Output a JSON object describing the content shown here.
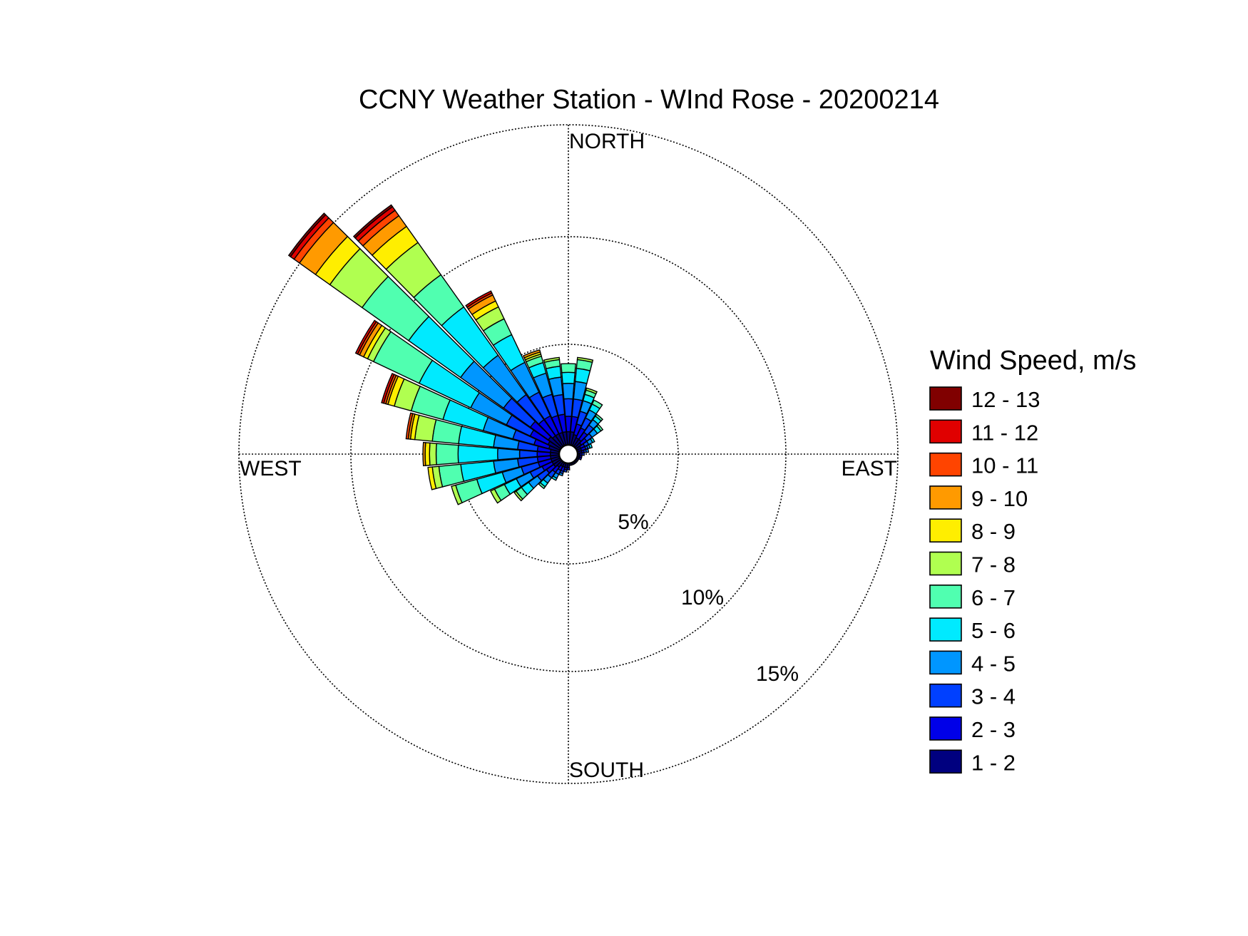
{
  "chart_data": {
    "type": "wind-rose",
    "title": "CCNY Weather Station - WInd Rose - 20200214",
    "directions": {
      "north": "NORTH",
      "east": "EAST",
      "south": "SOUTH",
      "west": "WEST"
    },
    "radial_ticks": [
      {
        "value": 5,
        "label": "5%"
      },
      {
        "value": 10,
        "label": "10%"
      },
      {
        "value": 15,
        "label": "15%"
      }
    ],
    "radial_max": 15,
    "legend_title": "Wind Speed, m/s",
    "bins": [
      {
        "label": "1 - 2",
        "color": "#00007f"
      },
      {
        "label": "2 - 3",
        "color": "#0000e8"
      },
      {
        "label": "3 - 4",
        "color": "#0040ff"
      },
      {
        "label": "4 - 5",
        "color": "#0096ff"
      },
      {
        "label": "5 - 6",
        "color": "#00eaff"
      },
      {
        "label": "6 - 7",
        "color": "#50ffb0"
      },
      {
        "label": "7 - 8",
        "color": "#b0ff50"
      },
      {
        "label": "8 - 9",
        "color": "#ffee00"
      },
      {
        "label": "9 - 10",
        "color": "#ff9a00"
      },
      {
        "label": "10 - 11",
        "color": "#ff4400"
      },
      {
        "label": "11 - 12",
        "color": "#e00000"
      },
      {
        "label": "12 - 13",
        "color": "#800000"
      }
    ],
    "sectors": [
      {
        "direction_deg": 0,
        "values": [
          0.6,
          0.7,
          0.8,
          0.7,
          0.5,
          0.4,
          0.0,
          0.0,
          0.0,
          0.0,
          0.0,
          0.0
        ]
      },
      {
        "direction_deg": 10,
        "values": [
          0.6,
          0.7,
          0.8,
          0.8,
          0.6,
          0.4,
          0.1,
          0.0,
          0.0,
          0.0,
          0.0,
          0.0
        ]
      },
      {
        "direction_deg": 20,
        "values": [
          0.5,
          0.5,
          0.6,
          0.5,
          0.3,
          0.2,
          0.1,
          0.0,
          0.0,
          0.0,
          0.0,
          0.0
        ]
      },
      {
        "direction_deg": 30,
        "values": [
          0.4,
          0.5,
          0.5,
          0.4,
          0.3,
          0.2,
          0.0,
          0.0,
          0.0,
          0.0,
          0.0,
          0.0
        ]
      },
      {
        "direction_deg": 40,
        "values": [
          0.4,
          0.4,
          0.4,
          0.3,
          0.2,
          0.1,
          0.0,
          0.0,
          0.0,
          0.0,
          0.0,
          0.0
        ]
      },
      {
        "direction_deg": 50,
        "values": [
          0.3,
          0.3,
          0.3,
          0.3,
          0.2,
          0.1,
          0.0,
          0.0,
          0.0,
          0.0,
          0.0,
          0.0
        ]
      },
      {
        "direction_deg": 60,
        "values": [
          0.2,
          0.2,
          0.2,
          0.2,
          0.1,
          0.0,
          0.0,
          0.0,
          0.0,
          0.0,
          0.0,
          0.0
        ]
      },
      {
        "direction_deg": 70,
        "values": [
          0.2,
          0.2,
          0.1,
          0.1,
          0.1,
          0.0,
          0.0,
          0.0,
          0.0,
          0.0,
          0.0,
          0.0
        ]
      },
      {
        "direction_deg": 80,
        "values": [
          0.2,
          0.1,
          0.1,
          0.1,
          0.0,
          0.0,
          0.0,
          0.0,
          0.0,
          0.0,
          0.0,
          0.0
        ]
      },
      {
        "direction_deg": 90,
        "values": [
          0.1,
          0.1,
          0.1,
          0.0,
          0.0,
          0.0,
          0.0,
          0.0,
          0.0,
          0.0,
          0.0,
          0.0
        ]
      },
      {
        "direction_deg": 100,
        "values": [
          0.1,
          0.1,
          0.0,
          0.0,
          0.0,
          0.0,
          0.0,
          0.0,
          0.0,
          0.0,
          0.0,
          0.0
        ]
      },
      {
        "direction_deg": 110,
        "values": [
          0.1,
          0.1,
          0.0,
          0.0,
          0.0,
          0.0,
          0.0,
          0.0,
          0.0,
          0.0,
          0.0,
          0.0
        ]
      },
      {
        "direction_deg": 120,
        "values": [
          0.1,
          0.0,
          0.0,
          0.0,
          0.0,
          0.0,
          0.0,
          0.0,
          0.0,
          0.0,
          0.0,
          0.0
        ]
      },
      {
        "direction_deg": 130,
        "values": [
          0.1,
          0.0,
          0.0,
          0.0,
          0.0,
          0.0,
          0.0,
          0.0,
          0.0,
          0.0,
          0.0,
          0.0
        ]
      },
      {
        "direction_deg": 140,
        "values": [
          0.1,
          0.0,
          0.0,
          0.0,
          0.0,
          0.0,
          0.0,
          0.0,
          0.0,
          0.0,
          0.0,
          0.0
        ]
      },
      {
        "direction_deg": 150,
        "values": [
          0.1,
          0.0,
          0.0,
          0.0,
          0.0,
          0.0,
          0.0,
          0.0,
          0.0,
          0.0,
          0.0,
          0.0
        ]
      },
      {
        "direction_deg": 160,
        "values": [
          0.1,
          0.0,
          0.0,
          0.0,
          0.0,
          0.0,
          0.0,
          0.0,
          0.0,
          0.0,
          0.0,
          0.0
        ]
      },
      {
        "direction_deg": 170,
        "values": [
          0.1,
          0.0,
          0.0,
          0.0,
          0.0,
          0.0,
          0.0,
          0.0,
          0.0,
          0.0,
          0.0,
          0.0
        ]
      },
      {
        "direction_deg": 180,
        "values": [
          0.2,
          0.1,
          0.0,
          0.0,
          0.0,
          0.0,
          0.0,
          0.0,
          0.0,
          0.0,
          0.0,
          0.0
        ]
      },
      {
        "direction_deg": 190,
        "values": [
          0.2,
          0.1,
          0.1,
          0.0,
          0.0,
          0.0,
          0.0,
          0.0,
          0.0,
          0.0,
          0.0,
          0.0
        ]
      },
      {
        "direction_deg": 200,
        "values": [
          0.2,
          0.2,
          0.1,
          0.1,
          0.0,
          0.0,
          0.0,
          0.0,
          0.0,
          0.0,
          0.0,
          0.0
        ]
      },
      {
        "direction_deg": 210,
        "values": [
          0.2,
          0.2,
          0.2,
          0.2,
          0.1,
          0.0,
          0.0,
          0.0,
          0.0,
          0.0,
          0.0,
          0.0
        ]
      },
      {
        "direction_deg": 220,
        "values": [
          0.3,
          0.3,
          0.3,
          0.3,
          0.2,
          0.1,
          0.0,
          0.0,
          0.0,
          0.0,
          0.0,
          0.0
        ]
      },
      {
        "direction_deg": 230,
        "values": [
          0.4,
          0.4,
          0.5,
          0.5,
          0.4,
          0.3,
          0.1,
          0.0,
          0.0,
          0.0,
          0.0,
          0.0
        ]
      },
      {
        "direction_deg": 240,
        "values": [
          0.4,
          0.5,
          0.6,
          0.7,
          0.6,
          0.5,
          0.2,
          0.0,
          0.0,
          0.0,
          0.0,
          0.0
        ]
      },
      {
        "direction_deg": 250,
        "values": [
          0.4,
          0.6,
          0.8,
          0.9,
          1.2,
          1.0,
          0.2,
          0.0,
          0.0,
          0.0,
          0.0,
          0.0
        ]
      },
      {
        "direction_deg": 260,
        "values": [
          0.4,
          0.6,
          0.9,
          1.1,
          1.5,
          1.0,
          0.3,
          0.2,
          0.0,
          0.0,
          0.0,
          0.0
        ]
      },
      {
        "direction_deg": 270,
        "values": [
          0.4,
          0.6,
          0.8,
          1.0,
          1.8,
          1.0,
          0.3,
          0.2,
          0.1,
          0.0,
          0.0,
          0.0
        ]
      },
      {
        "direction_deg": 280,
        "values": [
          0.4,
          0.6,
          0.9,
          1.1,
          1.6,
          1.2,
          0.8,
          0.2,
          0.1,
          0.1,
          0.0,
          0.0
        ]
      },
      {
        "direction_deg": 290,
        "values": [
          0.5,
          0.7,
          1.0,
          1.4,
          1.9,
          1.5,
          0.8,
          0.3,
          0.1,
          0.1,
          0.1,
          0.0
        ]
      },
      {
        "direction_deg": 300,
        "values": [
          0.6,
          0.9,
          1.2,
          1.8,
          2.6,
          2.3,
          0.3,
          0.2,
          0.2,
          0.1,
          0.1,
          0.0
        ]
      },
      {
        "direction_deg": 310,
        "values": [
          0.7,
          1.0,
          1.5,
          2.4,
          2.9,
          2.6,
          1.8,
          0.8,
          0.9,
          0.3,
          0.2,
          0.1
        ]
      },
      {
        "direction_deg": 320,
        "values": [
          0.6,
          0.9,
          1.4,
          2.2,
          2.7,
          1.8,
          1.8,
          0.9,
          0.6,
          0.3,
          0.2,
          0.1
        ]
      },
      {
        "direction_deg": 330,
        "values": [
          0.6,
          0.9,
          1.2,
          1.5,
          1.4,
          0.8,
          0.6,
          0.3,
          0.3,
          0.1,
          0.1,
          0.0
        ]
      },
      {
        "direction_deg": 340,
        "values": [
          0.6,
          0.8,
          1.0,
          1.0,
          0.5,
          0.3,
          0.1,
          0.1,
          0.1,
          0.0,
          0.0,
          0.0
        ]
      },
      {
        "direction_deg": 350,
        "values": [
          0.6,
          0.8,
          0.9,
          0.8,
          0.5,
          0.3,
          0.1,
          0.0,
          0.0,
          0.0,
          0.0,
          0.0
        ]
      }
    ]
  }
}
